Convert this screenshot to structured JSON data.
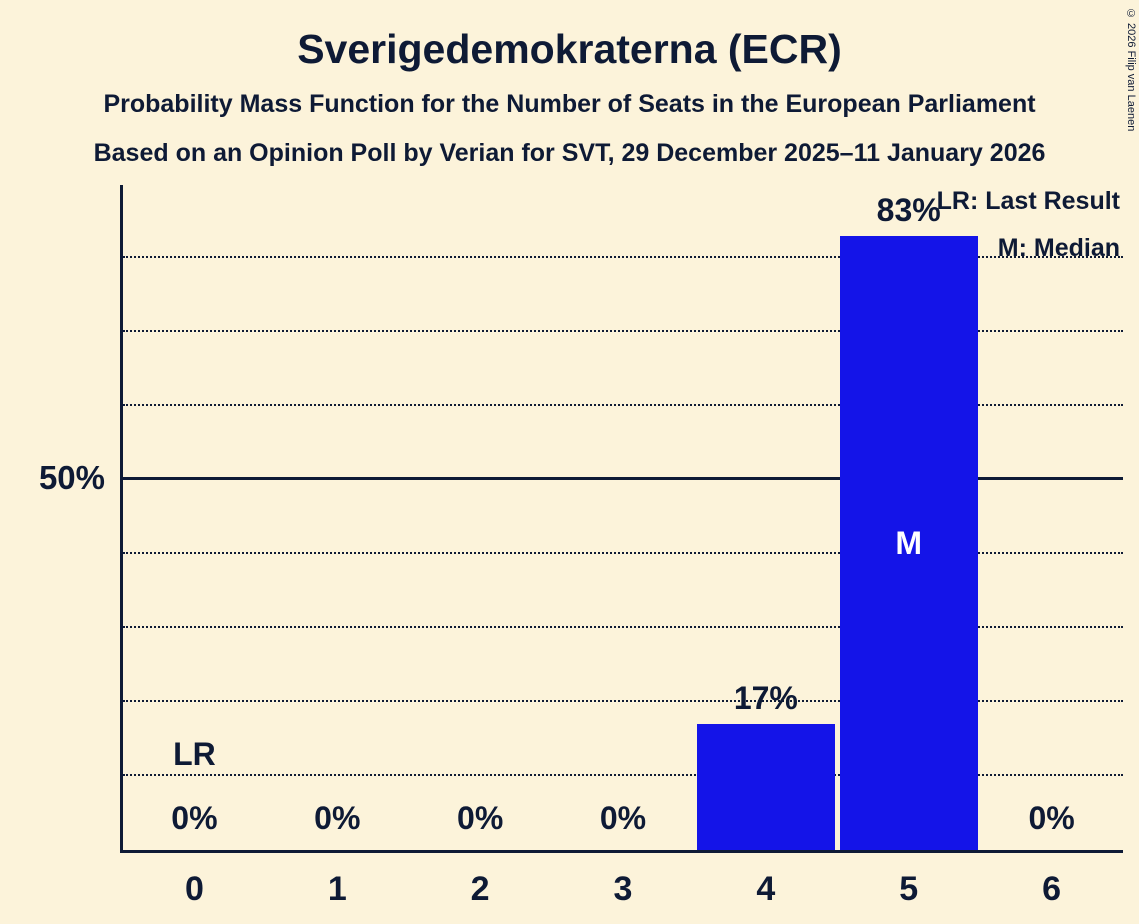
{
  "header": {
    "title": "Sverigedemokraterna (ECR)",
    "subtitle1": "Probability Mass Function for the Number of Seats in the European Parliament",
    "subtitle2": "Based on an Opinion Poll by Verian for SVT, 29 December 2025–11 January 2026"
  },
  "copyright": "© 2026 Filip van Laenen",
  "legend": {
    "lr": "LR: Last Result",
    "m": "M: Median"
  },
  "y_axis": {
    "tick_label": "50%"
  },
  "colors": {
    "background": "#fcf3da",
    "text": "#0e1a35",
    "bar": "#1414e8",
    "median_text": "#ffffff"
  },
  "chart_data": {
    "type": "bar",
    "title": "Sverigedemokraterna (ECR)",
    "subtitle": "Probability Mass Function for the Number of Seats in the European Parliament",
    "source_line": "Based on an Opinion Poll by Verian for SVT, 29 December 2025–11 January 2026",
    "xlabel": "",
    "ylabel": "",
    "categories": [
      "0",
      "1",
      "2",
      "3",
      "4",
      "5",
      "6"
    ],
    "values": [
      0,
      0,
      0,
      0,
      17,
      83,
      0
    ],
    "value_labels": [
      "0%",
      "0%",
      "0%",
      "0%",
      "17%",
      "83%",
      "0%"
    ],
    "ylim": [
      0,
      100
    ],
    "y_tick": {
      "value": 50,
      "label": "50%"
    },
    "gridlines_pct": [
      10,
      20,
      30,
      40,
      60,
      70,
      80
    ],
    "solid_line_pct": 50,
    "grid": "horizontal-dotted",
    "legend_position": "top-right",
    "legend": [
      "LR: Last Result",
      "M: Median"
    ],
    "median": {
      "seat": "5",
      "label": "M"
    },
    "last_result": {
      "seat": "0",
      "label": "LR"
    }
  }
}
